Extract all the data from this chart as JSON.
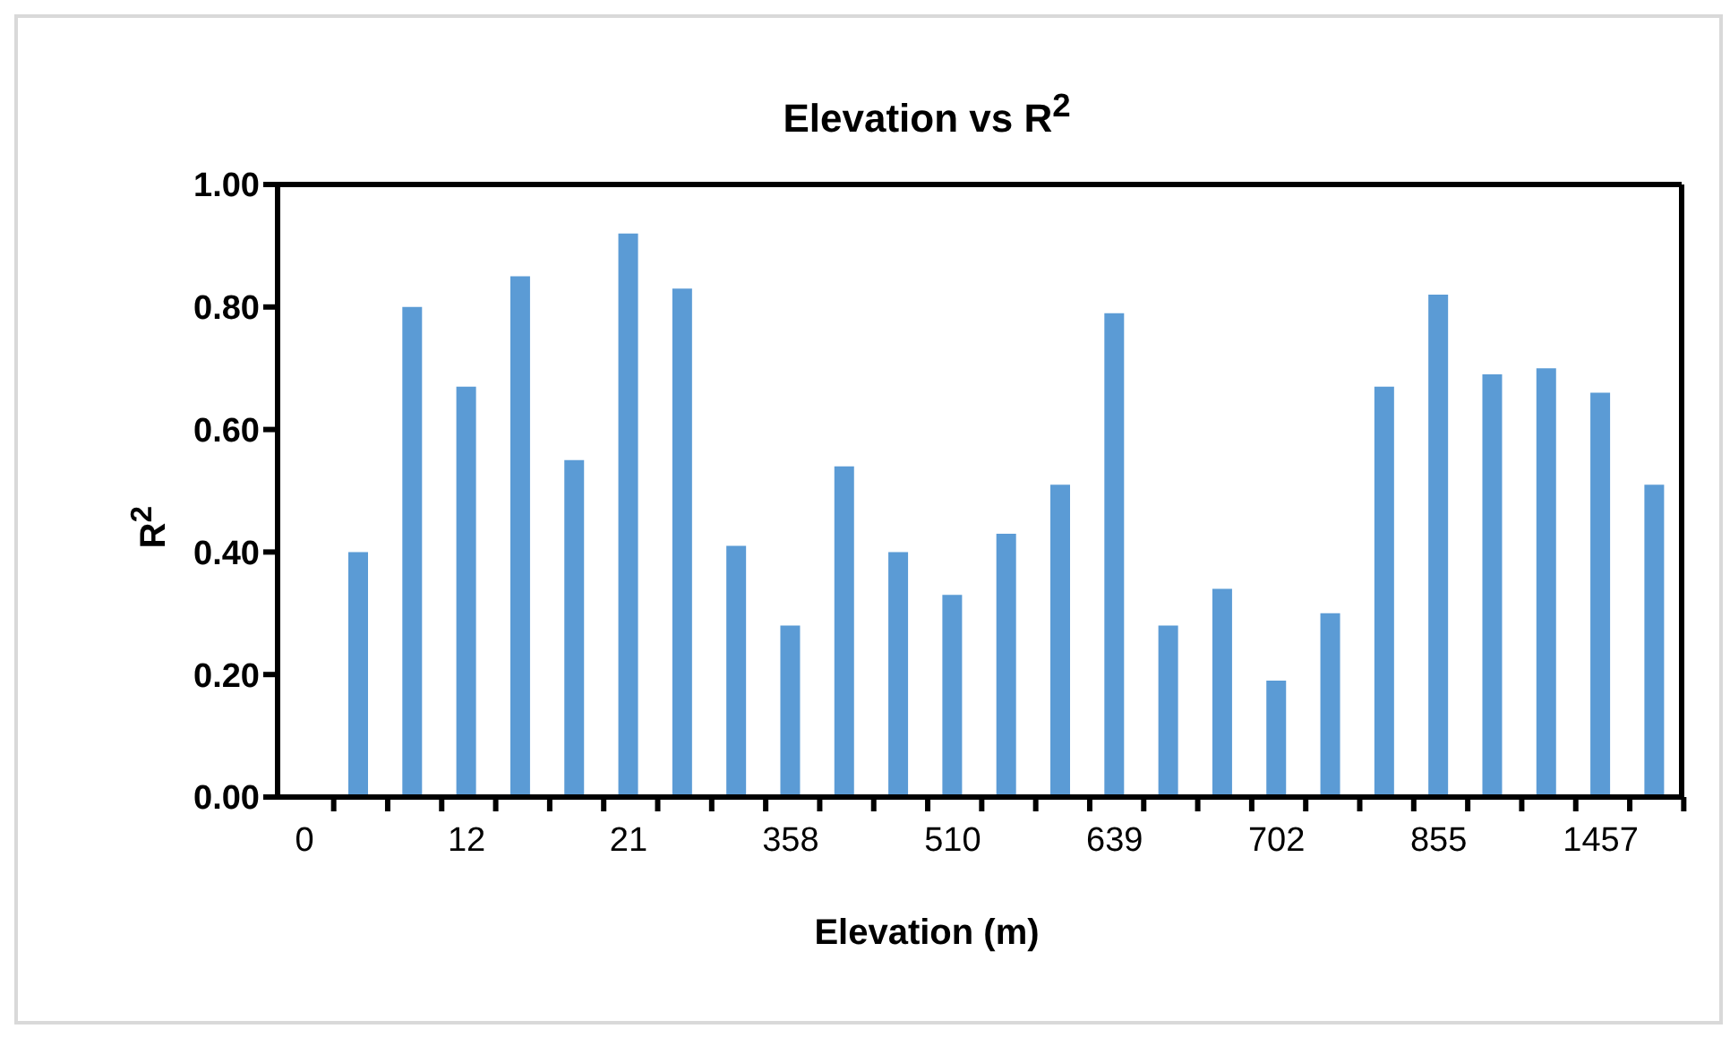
{
  "chart_data": {
    "type": "bar",
    "title": "Elevation vs R$^{2}$",
    "xlabel": "Elevation (m)",
    "ylabel": "R$^{2}$",
    "categories": [
      "0",
      null,
      null,
      "12",
      null,
      null,
      "21",
      null,
      null,
      "358",
      null,
      null,
      "510",
      null,
      null,
      "639",
      null,
      null,
      "702",
      null,
      null,
      "855",
      null,
      null,
      "1457",
      null
    ],
    "values": [
      null,
      0.4,
      0.8,
      0.67,
      0.85,
      0.55,
      0.92,
      0.83,
      0.41,
      0.28,
      0.54,
      0.4,
      0.33,
      0.43,
      0.51,
      0.79,
      0.28,
      0.34,
      0.19,
      0.3,
      0.67,
      0.82,
      0.69,
      0.7,
      0.66,
      0.51
    ],
    "color": "#5b9bd5",
    "ylim": [
      0,
      1
    ],
    "yticks": [
      {
        "value": 0,
        "label": "0.00"
      },
      {
        "value": 0.2,
        "label": "0.20"
      },
      {
        "value": 0.4,
        "label": "0.40"
      },
      {
        "value": 0.6,
        "label": "0.60"
      },
      {
        "value": 0.8,
        "label": "0.80"
      },
      {
        "value": 1,
        "label": "1.00"
      }
    ],
    "grid": false,
    "legend": false
  }
}
